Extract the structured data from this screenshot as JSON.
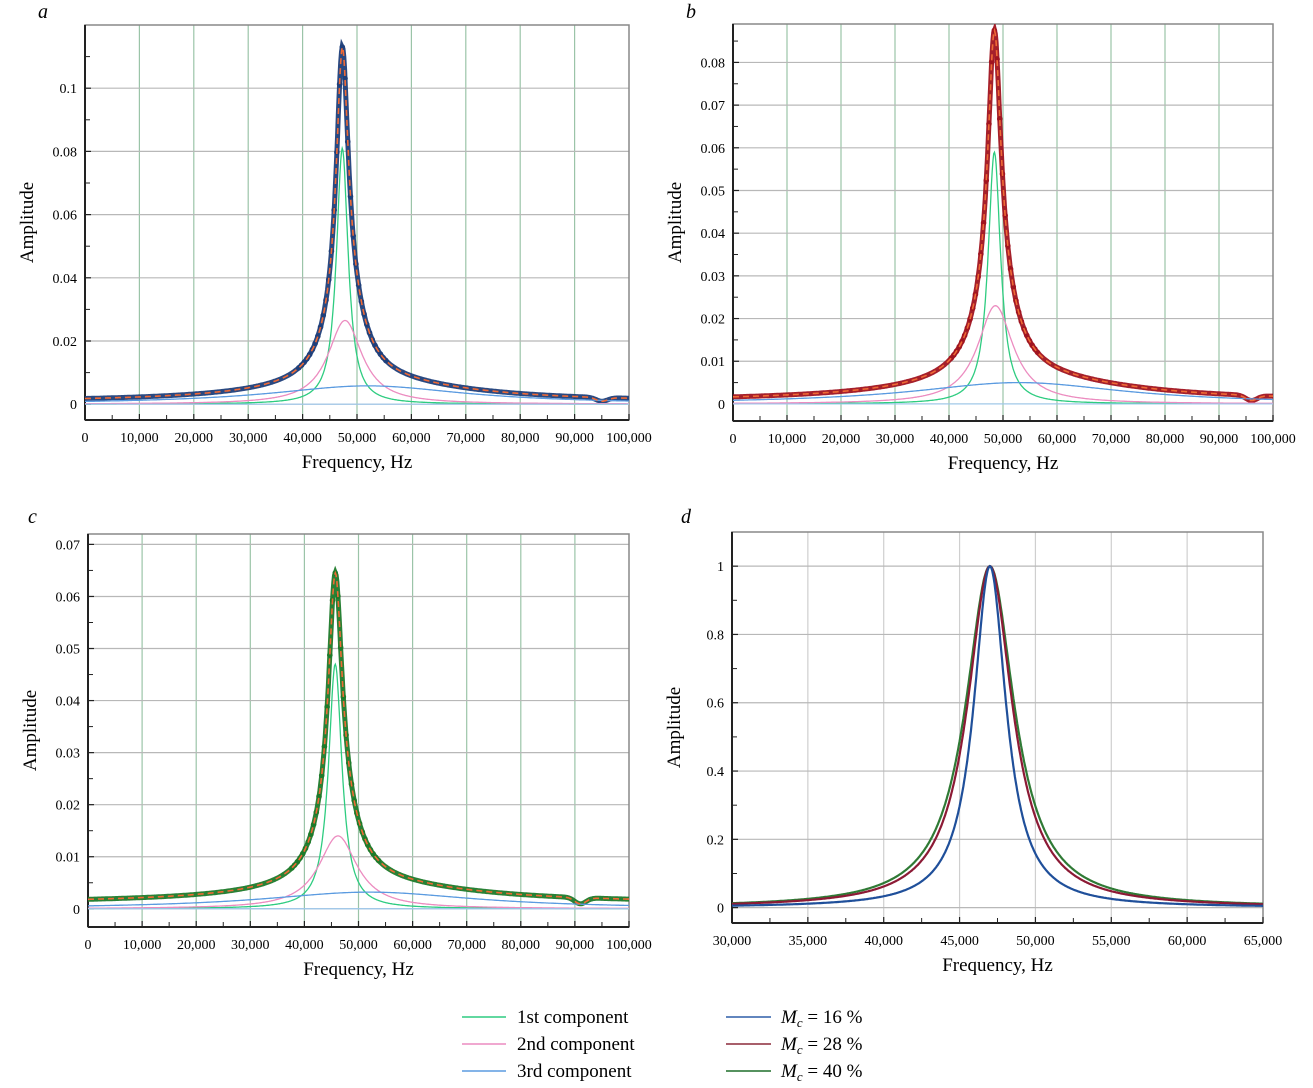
{
  "chart_data": [
    {
      "id": "a",
      "type": "line",
      "panel_label": "a",
      "xlabel": "Frequency, Hz",
      "ylabel": "Amplitude",
      "xlim": [
        0,
        100000
      ],
      "ylim": [
        -0.005,
        0.12
      ],
      "xticks": [
        0,
        10000,
        20000,
        30000,
        40000,
        50000,
        60000,
        70000,
        80000,
        90000,
        100000
      ],
      "xtick_labels": [
        "0",
        "10,000",
        "20,000",
        "30,000",
        "40,000",
        "50,000",
        "60,000",
        "70,000",
        "80,000",
        "90,000",
        "100,000"
      ],
      "yticks": [
        0,
        0.02,
        0.04,
        0.06,
        0.08,
        0.1
      ],
      "ytick_labels": [
        "0",
        "0.02",
        "0.04",
        "0.06",
        "0.08",
        "0.1"
      ],
      "grid": true,
      "marker_color": "#1f3f7a",
      "components": [
        {
          "name": "1st component",
          "center": 47300,
          "peak": 0.081,
          "hwhm": 1300
        },
        {
          "name": "2nd component",
          "center": 47800,
          "peak": 0.0265,
          "hwhm": 3800
        },
        {
          "name": "3rd component",
          "center": 52000,
          "peak": 0.0058,
          "hwhm": 22000
        }
      ],
      "measured_peak": {
        "x": 47300,
        "y": 0.113
      },
      "tail_bump": {
        "x": 95000,
        "y": 0.0005
      },
      "baseline": 0.0007
    },
    {
      "id": "b",
      "type": "line",
      "panel_label": "b",
      "xlabel": "Frequency, Hz",
      "ylabel": "Amplitude",
      "xlim": [
        0,
        100000
      ],
      "ylim": [
        -0.004,
        0.089
      ],
      "xticks": [
        0,
        10000,
        20000,
        30000,
        40000,
        50000,
        60000,
        70000,
        80000,
        90000,
        100000
      ],
      "xtick_labels": [
        "0",
        "10,000",
        "20,000",
        "30,000",
        "40,000",
        "50,000",
        "60,000",
        "70,000",
        "80,000",
        "90,000",
        "100,000"
      ],
      "yticks": [
        0,
        0.01,
        0.02,
        0.03,
        0.04,
        0.05,
        0.06,
        0.07,
        0.08
      ],
      "ytick_labels": [
        "0",
        "0.01",
        "0.02",
        "0.03",
        "0.04",
        "0.05",
        "0.06",
        "0.07",
        "0.08"
      ],
      "grid": true,
      "marker_color": "#a01420",
      "components": [
        {
          "name": "1st component",
          "center": 48400,
          "peak": 0.059,
          "hwhm": 1400
        },
        {
          "name": "2nd component",
          "center": 48600,
          "peak": 0.023,
          "hwhm": 4000
        },
        {
          "name": "3rd component",
          "center": 53000,
          "peak": 0.005,
          "hwhm": 24000
        }
      ],
      "measured_peak": {
        "x": 48400,
        "y": 0.0875
      },
      "tail_bump": {
        "x": 96000,
        "y": 0.0015
      },
      "baseline": 0.0006
    },
    {
      "id": "c",
      "type": "line",
      "panel_label": "c",
      "xlabel": "Frequency, Hz",
      "ylabel": "Amplitude",
      "xlim": [
        0,
        100000
      ],
      "ylim": [
        -0.0035,
        0.072
      ],
      "xticks": [
        0,
        10000,
        20000,
        30000,
        40000,
        50000,
        60000,
        70000,
        80000,
        90000,
        100000
      ],
      "xtick_labels": [
        "0",
        "10,000",
        "20,000",
        "30,000",
        "40,000",
        "50,000",
        "60,000",
        "70,000",
        "80,000",
        "90,000",
        "100,000"
      ],
      "yticks": [
        0,
        0.01,
        0.02,
        0.03,
        0.04,
        0.05,
        0.06,
        0.07
      ],
      "ytick_labels": [
        "0",
        "0.01",
        "0.02",
        "0.03",
        "0.04",
        "0.05",
        "0.06",
        "0.07"
      ],
      "grid": true,
      "marker_color": "#1e7a2a",
      "components": [
        {
          "name": "1st component",
          "center": 45700,
          "peak": 0.047,
          "hwhm": 1500
        },
        {
          "name": "2nd component",
          "center": 46200,
          "peak": 0.014,
          "hwhm": 4300
        },
        {
          "name": "3rd component",
          "center": 52000,
          "peak": 0.0032,
          "hwhm": 24000
        }
      ],
      "measured_peak": {
        "x": 45700,
        "y": 0.0645
      },
      "tail_bump": {
        "x": 91000,
        "y": 0.001
      },
      "baseline": 0.0011
    },
    {
      "id": "d",
      "type": "line",
      "panel_label": "d",
      "xlabel": "Frequency, Hz",
      "ylabel": "Amplitude",
      "xlim": [
        30000,
        65000
      ],
      "ylim": [
        -0.045,
        1.1
      ],
      "xticks": [
        30000,
        35000,
        40000,
        45000,
        50000,
        55000,
        60000,
        65000
      ],
      "xtick_labels": [
        "30,000",
        "35,000",
        "40,000",
        "45,000",
        "50,000",
        "55,000",
        "60,000",
        "65,000"
      ],
      "yticks": [
        0,
        0.2,
        0.4,
        0.6,
        0.8,
        1
      ],
      "ytick_labels": [
        "0",
        "0.2",
        "0.4",
        "0.6",
        "0.8",
        "1"
      ],
      "grid": true,
      "series": [
        {
          "name": "Mc = 16 %",
          "color": "#1f4f9a",
          "center": 47000,
          "peak": 1.0,
          "hwhm": 1300
        },
        {
          "name": "Mc = 28 %",
          "color": "#8c1a35",
          "center": 47000,
          "peak": 1.0,
          "hwhm": 1800
        },
        {
          "name": "Mc = 40 %",
          "color": "#2f7a35",
          "center": 47000,
          "peak": 1.0,
          "hwhm": 1950
        }
      ]
    }
  ],
  "legend": {
    "components": [
      {
        "label": "1st component",
        "color": "#2ecc80"
      },
      {
        "label": "2nd component",
        "color": "#ec8cc0"
      },
      {
        "label": "3rd component",
        "color": "#5b9be0"
      }
    ],
    "moisture": [
      {
        "symbol": "M",
        "subscript": "c",
        "label": " = 16 %",
        "color": "#2f5ea8"
      },
      {
        "symbol": "M",
        "subscript": "c",
        "label": " = 28 %",
        "color": "#8c2a3a"
      },
      {
        "symbol": "M",
        "subscript": "c",
        "label": " = 40 %",
        "color": "#1e6e2a"
      }
    ]
  },
  "styles": {
    "fit_line_color": "#f06a35",
    "grid_color_v": "#9bc4a8",
    "grid_color_h": "#b8b8b8",
    "axis_color": "#333333"
  }
}
